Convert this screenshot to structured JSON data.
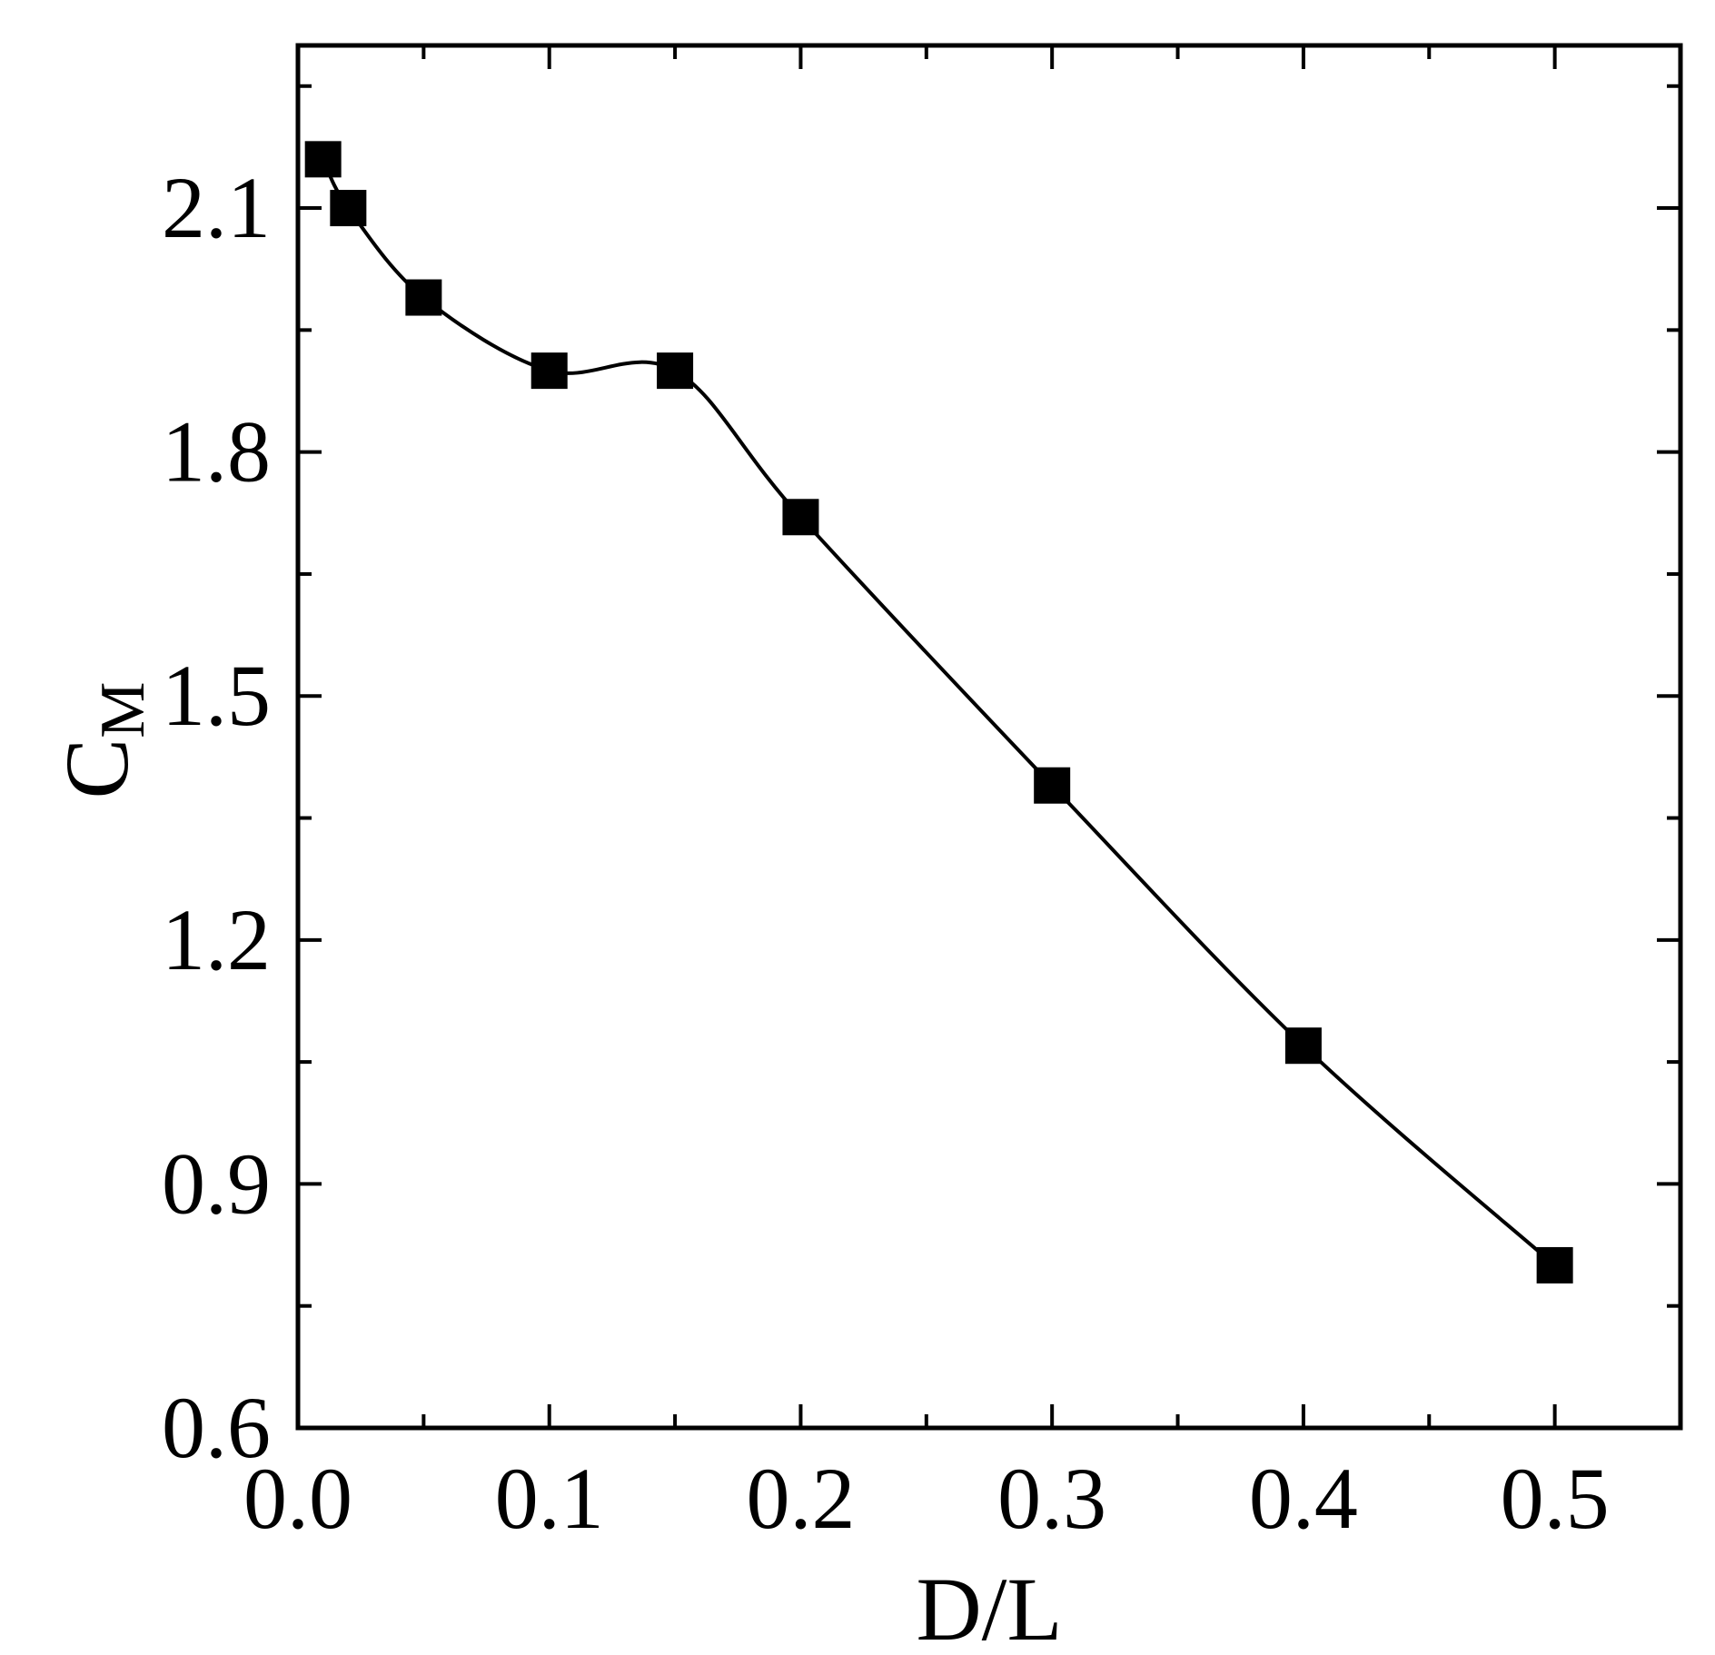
{
  "chart_data": {
    "type": "scatter",
    "xlabel": "D/L",
    "ylabel_main": "C",
    "ylabel_sub": "M",
    "xlim": [
      0.0,
      0.55
    ],
    "ylim": [
      0.6,
      2.3
    ],
    "xticks": [
      0.0,
      0.1,
      0.2,
      0.3,
      0.4,
      0.5
    ],
    "xtick_labels": [
      "0.0",
      "0.1",
      "0.2",
      "0.3",
      "0.4",
      "0.5"
    ],
    "xminor": [
      0.05,
      0.15,
      0.25,
      0.35,
      0.45
    ],
    "yticks": [
      0.6,
      0.9,
      1.2,
      1.5,
      1.8,
      2.1
    ],
    "ytick_labels": [
      "0.6",
      "0.9",
      "1.2",
      "1.5",
      "1.8",
      "2.1"
    ],
    "yminor": [
      0.75,
      1.05,
      1.35,
      1.65,
      1.95,
      2.25
    ],
    "grid": false,
    "series": [
      {
        "marker": "square",
        "color": "#000000",
        "fit_line": "smooth",
        "x": [
          0.01,
          0.02,
          0.05,
          0.1,
          0.15,
          0.2,
          0.3,
          0.4,
          0.5
        ],
        "y": [
          2.16,
          2.1,
          1.99,
          1.9,
          1.9,
          1.72,
          1.39,
          1.07,
          0.8
        ]
      }
    ]
  }
}
